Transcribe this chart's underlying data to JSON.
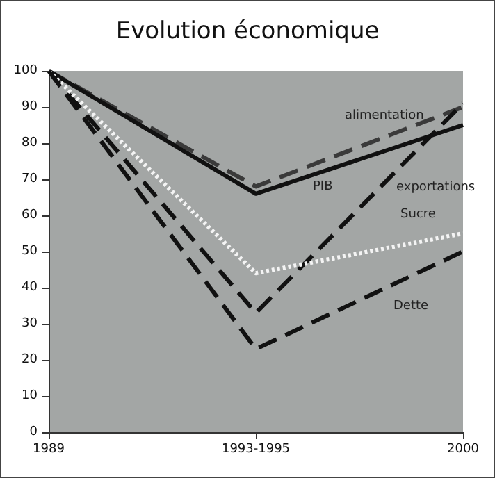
{
  "chart_data": {
    "type": "line",
    "title": "Evolution économique",
    "categories": [
      "1989",
      "1993-1995",
      "2000"
    ],
    "series": [
      {
        "name": "alimentation",
        "color": "#3a3a3a",
        "line_style": "dashed",
        "values": [
          100,
          68,
          90
        ]
      },
      {
        "name": "PIB",
        "color": "#111111",
        "line_style": "solid",
        "values": [
          100,
          66,
          85
        ]
      },
      {
        "name": "exportations",
        "color": "#111111",
        "line_style": "dashed",
        "values": [
          100,
          33,
          91
        ]
      },
      {
        "name": "Sucre",
        "color": "#f4f4f4",
        "line_style": "dotted",
        "values": [
          100,
          44,
          55
        ]
      },
      {
        "name": "Dette",
        "color": "#111111",
        "line_style": "dashed",
        "values": [
          100,
          23,
          50
        ]
      }
    ],
    "ylim": [
      0,
      100
    ],
    "yticks": [
      0,
      10,
      20,
      30,
      40,
      50,
      60,
      70,
      80,
      90,
      100
    ],
    "grid": false,
    "legend": false,
    "marker": "none"
  }
}
